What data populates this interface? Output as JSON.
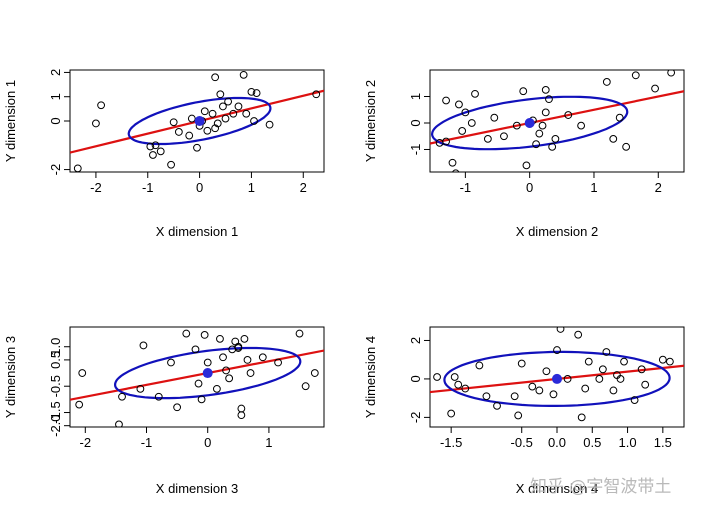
{
  "chart_data": [
    {
      "type": "scatter",
      "xlabel": "X dimension 1",
      "ylabel": "Y dimension 1",
      "xlim": [
        -2.5,
        2.4
      ],
      "ylim": [
        -2.1,
        2.1
      ],
      "xticks": [
        -2,
        -1,
        0,
        1,
        2
      ],
      "yticks": [
        -2,
        0,
        1,
        2
      ],
      "ytick_labels": [
        "-2",
        "0",
        "1",
        "2"
      ],
      "points": [
        [
          -2.35,
          -1.95
        ],
        [
          -1.9,
          0.65
        ],
        [
          -2.0,
          -0.1
        ],
        [
          -0.95,
          -1.05
        ],
        [
          -0.9,
          -1.4
        ],
        [
          -0.85,
          -1.0
        ],
        [
          -0.75,
          -1.25
        ],
        [
          -0.55,
          -1.8
        ],
        [
          -0.5,
          -0.05
        ],
        [
          -0.4,
          -0.45
        ],
        [
          -0.2,
          -0.6
        ],
        [
          -0.15,
          0.1
        ],
        [
          -0.05,
          -1.1
        ],
        [
          0.0,
          -0.2
        ],
        [
          0.05,
          0.0
        ],
        [
          0.1,
          0.4
        ],
        [
          0.15,
          -0.4
        ],
        [
          0.25,
          0.3
        ],
        [
          0.3,
          -0.3
        ],
        [
          0.3,
          1.8
        ],
        [
          0.35,
          -0.1
        ],
        [
          0.4,
          1.1
        ],
        [
          0.45,
          0.6
        ],
        [
          0.5,
          0.1
        ],
        [
          0.55,
          0.8
        ],
        [
          0.65,
          0.3
        ],
        [
          0.75,
          0.6
        ],
        [
          0.85,
          1.9
        ],
        [
          0.9,
          0.3
        ],
        [
          1.0,
          1.2
        ],
        [
          1.05,
          0.0
        ],
        [
          1.1,
          1.15
        ],
        [
          1.35,
          -0.15
        ],
        [
          2.25,
          1.1
        ]
      ],
      "regression": {
        "intercept": 0.0,
        "slope": 0.52
      },
      "ellipse": {
        "center": [
          0,
          0
        ],
        "a": 1.5,
        "b": 0.72,
        "angle_deg": 28
      },
      "centroid": [
        0,
        0
      ],
      "colors": {
        "points": "#000000",
        "line": "#dd1111",
        "ellipse": "#1111bb",
        "centroid": "#2a2ad8"
      }
    },
    {
      "type": "scatter",
      "xlabel": "X dimension 2",
      "ylabel": "Y dimension 2",
      "xlim": [
        -1.55,
        2.4
      ],
      "ylim": [
        -1.85,
        2.0
      ],
      "xticks": [
        -1,
        0,
        1,
        2
      ],
      "yticks": [
        -1,
        0,
        1
      ],
      "ytick_labels": [
        "-1",
        "0",
        "1"
      ],
      "points": [
        [
          -1.4,
          -0.75
        ],
        [
          -1.3,
          0.85
        ],
        [
          -1.3,
          -0.7
        ],
        [
          -1.2,
          -1.5
        ],
        [
          -1.15,
          -1.9
        ],
        [
          -1.1,
          0.7
        ],
        [
          -1.05,
          -0.3
        ],
        [
          -1.0,
          0.4
        ],
        [
          -0.9,
          0.0
        ],
        [
          -0.85,
          1.1
        ],
        [
          -0.65,
          -0.6
        ],
        [
          -0.55,
          0.2
        ],
        [
          -0.4,
          -0.5
        ],
        [
          -0.2,
          -0.1
        ],
        [
          -0.1,
          1.2
        ],
        [
          -0.05,
          -1.6
        ],
        [
          0.05,
          0.1
        ],
        [
          0.1,
          -0.8
        ],
        [
          0.15,
          -0.4
        ],
        [
          0.2,
          -0.1
        ],
        [
          0.25,
          0.4
        ],
        [
          0.25,
          1.25
        ],
        [
          0.3,
          0.9
        ],
        [
          0.35,
          -0.9
        ],
        [
          0.4,
          -0.6
        ],
        [
          0.6,
          0.3
        ],
        [
          0.8,
          -0.1
        ],
        [
          1.2,
          1.55
        ],
        [
          1.3,
          -0.6
        ],
        [
          1.4,
          0.2
        ],
        [
          1.65,
          1.8
        ],
        [
          1.95,
          1.3
        ],
        [
          2.2,
          1.9
        ],
        [
          1.5,
          -0.9
        ]
      ],
      "regression": {
        "intercept": 0.0,
        "slope": 0.5
      },
      "ellipse": {
        "center": [
          0,
          0
        ],
        "a": 1.6,
        "b": 0.85,
        "angle_deg": 22
      },
      "centroid": [
        0,
        0
      ],
      "colors": {
        "points": "#000000",
        "line": "#dd1111",
        "ellipse": "#1111bb",
        "centroid": "#2a2ad8"
      }
    },
    {
      "type": "scatter",
      "xlabel": "X dimension 3",
      "ylabel": "Y dimension 3",
      "xlim": [
        -2.25,
        1.9
      ],
      "ylim": [
        -2.05,
        1.75
      ],
      "xticks": [
        -2,
        -1,
        0,
        1
      ],
      "yticks": [
        -2,
        -1.5,
        -0.5,
        0.5,
        1
      ],
      "ytick_labels": [
        "-2.0",
        "-1.5",
        "-0.5",
        "0.5",
        "1.0"
      ],
      "points": [
        [
          -2.1,
          -1.2
        ],
        [
          -2.05,
          0.0
        ],
        [
          -1.45,
          -1.95
        ],
        [
          -1.4,
          -0.9
        ],
        [
          -1.1,
          -0.6
        ],
        [
          -1.05,
          1.05
        ],
        [
          -0.8,
          -0.9
        ],
        [
          -0.6,
          0.4
        ],
        [
          -0.5,
          -1.3
        ],
        [
          -0.35,
          1.5
        ],
        [
          -0.2,
          0.9
        ],
        [
          -0.15,
          -0.4
        ],
        [
          -0.1,
          -1.0
        ],
        [
          -0.05,
          1.45
        ],
        [
          0.0,
          0.4
        ],
        [
          0.15,
          -0.6
        ],
        [
          0.2,
          1.3
        ],
        [
          0.25,
          0.6
        ],
        [
          0.3,
          0.1
        ],
        [
          0.35,
          -0.2
        ],
        [
          0.4,
          0.9
        ],
        [
          0.45,
          1.2
        ],
        [
          0.5,
          0.95
        ],
        [
          0.5,
          1.0
        ],
        [
          0.55,
          -1.35
        ],
        [
          0.55,
          -1.6
        ],
        [
          0.6,
          1.3
        ],
        [
          0.65,
          0.5
        ],
        [
          0.7,
          0.0
        ],
        [
          0.9,
          0.6
        ],
        [
          1.15,
          0.4
        ],
        [
          1.5,
          1.5
        ],
        [
          1.6,
          -0.5
        ],
        [
          1.75,
          0.0
        ]
      ],
      "regression": {
        "intercept": 0.0,
        "slope": 0.45
      },
      "ellipse": {
        "center": [
          0,
          0
        ],
        "a": 1.6,
        "b": 0.8,
        "angle_deg": 22
      },
      "centroid": [
        0,
        0
      ],
      "colors": {
        "points": "#000000",
        "line": "#dd1111",
        "ellipse": "#1111bb",
        "centroid": "#2a2ad8"
      }
    },
    {
      "type": "scatter",
      "xlabel": "X dimension 4",
      "ylabel": "Y dimension 4",
      "xlim": [
        -1.8,
        1.8
      ],
      "ylim": [
        -2.5,
        2.7
      ],
      "xticks": [
        -1.5,
        -0.5,
        0,
        0.5,
        1,
        1.5
      ],
      "xtick_labels": [
        "-1.5",
        "-0.5",
        "0.0",
        "0.5",
        "1.0",
        "1.5"
      ],
      "yticks": [
        -2,
        0,
        2
      ],
      "ytick_labels": [
        "-2",
        "0",
        "2"
      ],
      "points": [
        [
          -1.7,
          0.1
        ],
        [
          -1.5,
          -1.8
        ],
        [
          -1.45,
          0.1
        ],
        [
          -1.4,
          -0.3
        ],
        [
          -1.3,
          -0.5
        ],
        [
          -1.1,
          0.7
        ],
        [
          -1.0,
          -0.9
        ],
        [
          -0.85,
          -1.4
        ],
        [
          -0.6,
          -0.9
        ],
        [
          -0.55,
          -1.9
        ],
        [
          -0.5,
          0.8
        ],
        [
          -0.35,
          -0.4
        ],
        [
          -0.25,
          -0.6
        ],
        [
          -0.15,
          0.4
        ],
        [
          -0.05,
          -0.8
        ],
        [
          0.0,
          1.5
        ],
        [
          0.05,
          2.6
        ],
        [
          0.15,
          0.0
        ],
        [
          0.3,
          2.3
        ],
        [
          0.35,
          -2.0
        ],
        [
          0.4,
          -0.5
        ],
        [
          0.45,
          0.9
        ],
        [
          0.6,
          0.0
        ],
        [
          0.65,
          0.5
        ],
        [
          0.7,
          1.4
        ],
        [
          0.8,
          -0.6
        ],
        [
          0.85,
          0.2
        ],
        [
          0.9,
          0.0
        ],
        [
          0.95,
          0.9
        ],
        [
          1.1,
          -1.1
        ],
        [
          1.2,
          0.5
        ],
        [
          1.25,
          -0.3
        ],
        [
          1.5,
          1.0
        ],
        [
          1.6,
          0.9
        ]
      ],
      "regression": {
        "intercept": 0.0,
        "slope": 0.38
      },
      "ellipse": {
        "center": [
          0,
          0
        ],
        "a": 1.6,
        "b": 1.4,
        "angle_deg": 8
      },
      "centroid": [
        0,
        0
      ],
      "colors": {
        "points": "#000000",
        "line": "#dd1111",
        "ellipse": "#1111bb",
        "centroid": "#2a2ad8"
      }
    }
  ],
  "watermark": "知乎 @宇智波带土"
}
